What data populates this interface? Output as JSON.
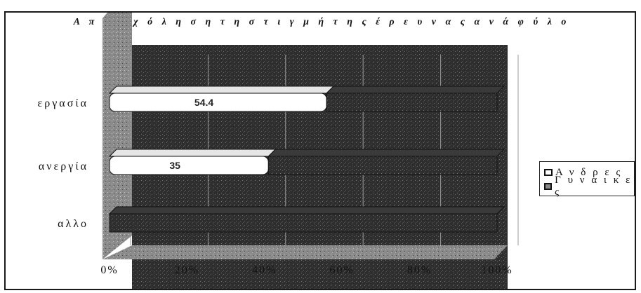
{
  "chart_data": {
    "type": "bar",
    "orientation": "horizontal",
    "stacked": "100%",
    "title": "Α π α σ χ ό λ η σ η  τ η  σ τ ι γ μ ή  τ η ς  έ ρ ε υ ν α ς  α ν ά  φ ύ λ ο",
    "categories": [
      "εργασία",
      "ανεργία",
      "αλλο"
    ],
    "series": [
      {
        "name": "Α ν δ ρ ε ς",
        "values": [
          56,
          41,
          0
        ],
        "labels": [
          "54.4",
          "35",
          ""
        ],
        "color": "#ffffff"
      },
      {
        "name": "Γ υ ν α ι κ ε ς",
        "values": [
          44,
          59,
          100
        ],
        "labels": [
          "",
          "",
          ""
        ],
        "color": "#2a2a2a"
      }
    ],
    "xticks": [
      "0%",
      "20%",
      "40%",
      "60%",
      "80%",
      "100%"
    ],
    "xlim": [
      0,
      100
    ],
    "legend": "right"
  }
}
